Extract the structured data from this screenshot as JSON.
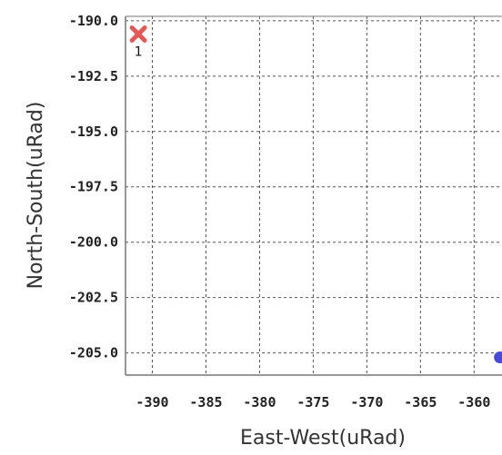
{
  "chart_data": {
    "type": "scatter",
    "title": "",
    "xlabel": "East-West(uRad)",
    "ylabel": "North-South(uRad)",
    "xlim": [
      -392.5,
      -357.4
    ],
    "ylim": [
      -206.0,
      -189.8
    ],
    "x_ticks": [
      -390,
      -385,
      -380,
      -375,
      -370,
      -365,
      -360
    ],
    "x_tick_labels": [
      "-390",
      "-385",
      "-380",
      "-375",
      "-370",
      "-365",
      "-360"
    ],
    "y_ticks": [
      -190.0,
      -192.5,
      -195.0,
      -197.5,
      -200.0,
      -202.5,
      -205.0
    ],
    "y_tick_labels": [
      "-190.0",
      "-192.5",
      "-195.0",
      "-197.5",
      "-200.0",
      "-202.5",
      "-205.0"
    ],
    "grid": true,
    "points": [
      {
        "x": -391.3,
        "y": -190.6,
        "marker": "x",
        "color": "#e05a5a",
        "label": "1"
      },
      {
        "x": -357.6,
        "y": -205.2,
        "marker": "circle",
        "color": "#4a4ad8",
        "label": ""
      }
    ]
  }
}
